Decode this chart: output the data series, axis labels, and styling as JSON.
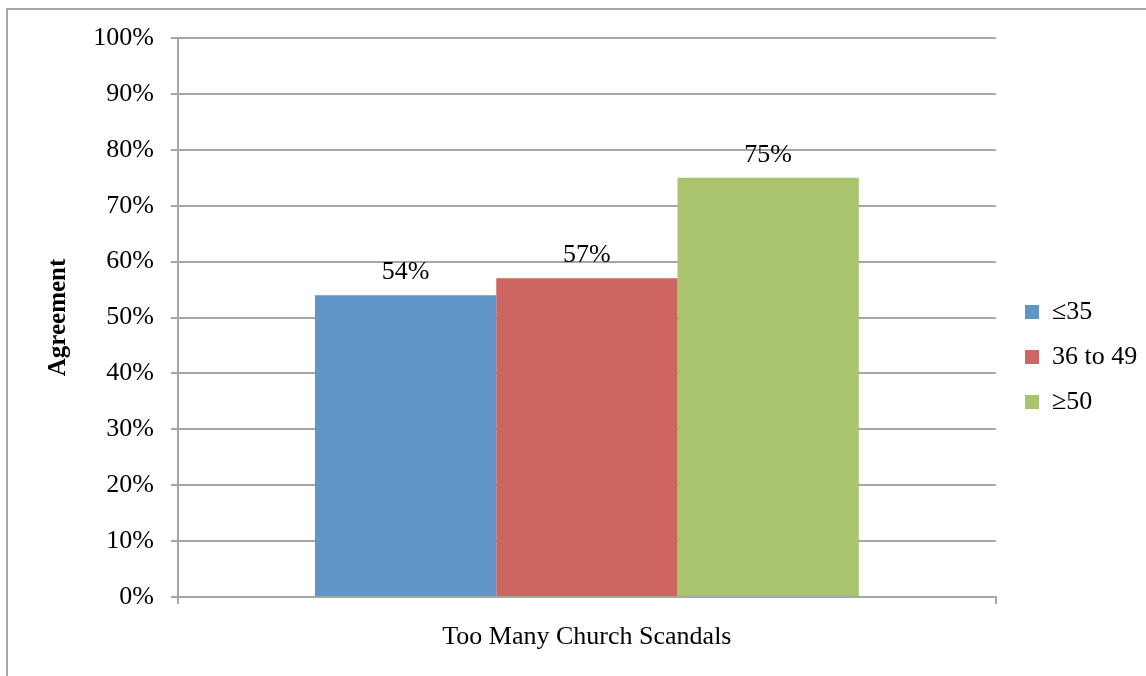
{
  "chart_data": {
    "type": "bar",
    "ylabel": "Agreement",
    "categories": [
      "Too Many Church Scandals"
    ],
    "series": [
      {
        "name": "≤35",
        "color": "#6095c8",
        "values": [
          54
        ],
        "value_labels": [
          "54%"
        ]
      },
      {
        "name": "36 to 49",
        "color": "#cd6660",
        "values": [
          57
        ],
        "value_labels": [
          "57%"
        ]
      },
      {
        "name": "≥50",
        "color": "#a9c46c",
        "values": [
          75
        ],
        "value_labels": [
          "75%"
        ]
      }
    ],
    "ylim": [
      0,
      100
    ],
    "yticks": [
      {
        "value": 0,
        "label": "0%"
      },
      {
        "value": 10,
        "label": "10%"
      },
      {
        "value": 20,
        "label": "20%"
      },
      {
        "value": 30,
        "label": "30%"
      },
      {
        "value": 40,
        "label": "40%"
      },
      {
        "value": 50,
        "label": "50%"
      },
      {
        "value": 60,
        "label": "60%"
      },
      {
        "value": 70,
        "label": "70%"
      },
      {
        "value": 80,
        "label": "80%"
      },
      {
        "value": 90,
        "label": "90%"
      },
      {
        "value": 100,
        "label": "100%"
      }
    ],
    "grid": "y",
    "legend": "right"
  }
}
